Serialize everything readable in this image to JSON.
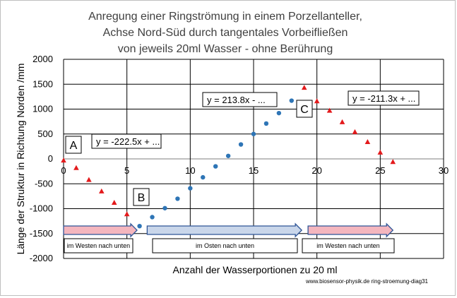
{
  "chart_data": {
    "type": "scatter",
    "title": [
      "Anregung einer Ringströmung in einem Porzellanteller,",
      "Achse Nord-Süd durch tangentales Vorbeifließen",
      "von jeweils 20ml Wasser - ohne Berührung"
    ],
    "xlabel": "Anzahl der Wasserportionen zu 20 ml",
    "ylabel": "Länge der Struktur in Richtung Norden /mm",
    "xlim": [
      0,
      30
    ],
    "ylim": [
      -2000,
      2000
    ],
    "xticks": [
      0,
      5,
      10,
      15,
      20,
      25,
      30
    ],
    "yticks": [
      2000,
      1500,
      1000,
      500,
      0,
      -500,
      -1000,
      -1500,
      -2000
    ],
    "grid": true,
    "series": [
      {
        "marker": "triangle",
        "color": "#e31a1c",
        "points": [
          [
            0,
            -30
          ],
          [
            1,
            -180
          ],
          [
            2,
            -420
          ],
          [
            3,
            -650
          ],
          [
            4,
            -880
          ],
          [
            5,
            -1110
          ]
        ]
      },
      {
        "marker": "circle",
        "color": "#2e75b6",
        "points": [
          [
            6,
            -1350
          ],
          [
            7,
            -1170
          ],
          [
            8,
            -990
          ],
          [
            9,
            -800
          ],
          [
            10,
            -590
          ],
          [
            11,
            -370
          ],
          [
            12,
            -150
          ],
          [
            13,
            60
          ],
          [
            14,
            290
          ],
          [
            15,
            500
          ],
          [
            16,
            710
          ],
          [
            17,
            920
          ],
          [
            18,
            1170
          ]
        ]
      },
      {
        "marker": "triangle",
        "color": "#e31a1c",
        "points": [
          [
            19,
            1430
          ],
          [
            20,
            1160
          ],
          [
            21,
            970
          ],
          [
            22,
            740
          ],
          [
            23,
            540
          ],
          [
            24,
            340
          ],
          [
            25,
            130
          ],
          [
            26,
            -60
          ]
        ]
      }
    ],
    "annotations": {
      "equations": [
        {
          "text": "y = -222.5x + ..."
        },
        {
          "text": "y = 213.8x - ..."
        },
        {
          "text": "y = -211.3x + ..."
        }
      ],
      "letters": [
        "A",
        "B",
        "C"
      ],
      "phases": [
        {
          "label": "im Westen nach unten",
          "from_x": 0,
          "to_x": 5.8,
          "fill": "#f4b6be"
        },
        {
          "label": "im Osten nach unten",
          "from_x": 6.6,
          "to_x": 18.8,
          "fill": "#c9d6ea"
        },
        {
          "label": "im Westen nach unten",
          "from_x": 19.3,
          "to_x": 26,
          "fill": "#f4b6be"
        }
      ]
    },
    "credit": "www.biosensor-physik.de ring-stroemung-diag31"
  }
}
